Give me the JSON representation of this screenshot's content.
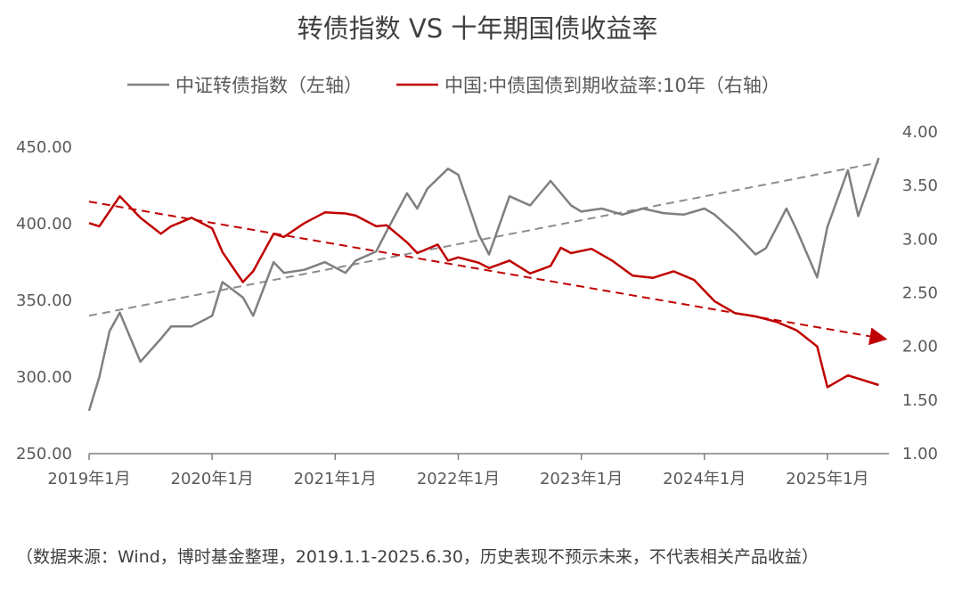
{
  "chart_data": {
    "type": "line",
    "title": "转债指数 VS 十年期国债收益率",
    "source_note": "（数据来源：Wind，博时基金整理，2019.1.1-2025.6.30，历史表现不预示未来，不代表相关产品收益）",
    "x_tick_labels": [
      "2019年1月",
      "2020年1月",
      "2021年1月",
      "2022年1月",
      "2023年1月",
      "2024年1月",
      "2025年1月"
    ],
    "y_left": {
      "ticks": [
        "250.00",
        "300.00",
        "350.00",
        "400.00",
        "450.00"
      ],
      "range": [
        250,
        460
      ]
    },
    "y_right": {
      "ticks": [
        "1.00",
        "1.50",
        "2.00",
        "2.50",
        "3.00",
        "3.50",
        "4.00"
      ],
      "range": [
        1.0,
        4.0
      ]
    },
    "legend": "top-center",
    "colors": {
      "index": "#7f7f7f",
      "yield": "#c00000",
      "text": "#595959",
      "axis": "#7f7f7f"
    },
    "series": [
      {
        "name": "中证转债指数（左轴）",
        "axis": "left",
        "x": [
          "2019-01",
          "2019-02",
          "2019-03",
          "2019-04",
          "2019-06",
          "2019-08",
          "2019-09",
          "2019-11",
          "2020-01",
          "2020-02",
          "2020-04",
          "2020-05",
          "2020-07",
          "2020-08",
          "2020-10",
          "2020-12",
          "2021-02",
          "2021-03",
          "2021-05",
          "2021-06",
          "2021-08",
          "2021-09",
          "2021-10",
          "2021-12",
          "2022-01",
          "2022-03",
          "2022-04",
          "2022-06",
          "2022-08",
          "2022-10",
          "2022-12",
          "2023-01",
          "2023-03",
          "2023-05",
          "2023-07",
          "2023-09",
          "2023-11",
          "2024-01",
          "2024-02",
          "2024-04",
          "2024-06",
          "2024-07",
          "2024-09",
          "2024-10",
          "2024-12",
          "2025-01",
          "2025-03",
          "2025-04",
          "2025-06"
        ],
        "values": [
          278,
          300,
          330,
          342,
          310,
          325,
          333,
          333,
          340,
          362,
          352,
          340,
          375,
          368,
          370,
          375,
          368,
          376,
          382,
          395,
          420,
          410,
          423,
          436,
          432,
          393,
          380,
          418,
          412,
          428,
          412,
          408,
          410,
          406,
          410,
          407,
          406,
          410,
          406,
          394,
          380,
          384,
          410,
          396,
          365,
          398,
          435,
          405,
          443
        ]
      },
      {
        "name": "中国:中债国债到期收益率:10年（右轴）",
        "axis": "right",
        "x": [
          "2019-01",
          "2019-02",
          "2019-04",
          "2019-06",
          "2019-08",
          "2019-09",
          "2019-11",
          "2020-01",
          "2020-02",
          "2020-04",
          "2020-05",
          "2020-07",
          "2020-08",
          "2020-10",
          "2020-12",
          "2021-02",
          "2021-03",
          "2021-05",
          "2021-06",
          "2021-08",
          "2021-09",
          "2021-11",
          "2021-12",
          "2022-01",
          "2022-03",
          "2022-04",
          "2022-06",
          "2022-08",
          "2022-10",
          "2022-11",
          "2022-12",
          "2023-02",
          "2023-04",
          "2023-06",
          "2023-08",
          "2023-10",
          "2023-12",
          "2024-02",
          "2024-04",
          "2024-06",
          "2024-08",
          "2024-10",
          "2024-12",
          "2025-01",
          "2025-03",
          "2025-04",
          "2025-06"
        ],
        "values": [
          3.15,
          3.12,
          3.4,
          3.2,
          3.05,
          3.12,
          3.2,
          3.1,
          2.88,
          2.6,
          2.7,
          3.05,
          3.02,
          3.15,
          3.25,
          3.24,
          3.22,
          3.12,
          3.13,
          2.97,
          2.87,
          2.95,
          2.8,
          2.83,
          2.78,
          2.73,
          2.8,
          2.68,
          2.75,
          2.92,
          2.87,
          2.91,
          2.8,
          2.66,
          2.64,
          2.7,
          2.62,
          2.42,
          2.31,
          2.28,
          2.23,
          2.15,
          2.0,
          1.62,
          1.73,
          1.7,
          1.64
        ]
      }
    ],
    "trendlines": [
      {
        "axis": "left",
        "from": [
          "2019-01",
          340
        ],
        "to": [
          "2025-06",
          440
        ],
        "style": "dashed",
        "color": "#8c8c8c"
      },
      {
        "axis": "right",
        "from": [
          "2019-01",
          3.35
        ],
        "to": [
          "2025-06",
          2.08
        ],
        "style": "dashed-arrow",
        "color": "#c00000"
      }
    ]
  }
}
